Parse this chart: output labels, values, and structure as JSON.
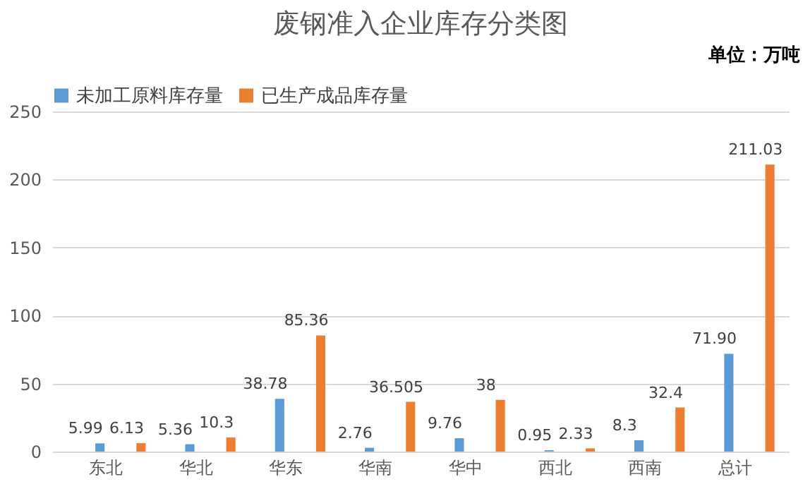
{
  "chart_data": {
    "type": "bar",
    "title": "废钢准入企业库存分类图",
    "annotations": [
      "单位：万吨"
    ],
    "categories": [
      "东北",
      "华北",
      "华东",
      "华南",
      "华中",
      "西北",
      "西南",
      "总计"
    ],
    "series": [
      {
        "name": "未加工原料库存量",
        "color": "#5b9bd5",
        "values": [
          5.99,
          5.36,
          38.78,
          2.76,
          9.76,
          0.95,
          8.3,
          71.9
        ],
        "value_labels": [
          "5.99",
          "5.36",
          "38.78",
          "2.76",
          "9.76",
          "0.95",
          "8.3",
          "71.90"
        ]
      },
      {
        "name": "已生产成品库存量",
        "color": "#ed7d31",
        "values": [
          6.13,
          10.3,
          85.36,
          36.505,
          38,
          2.33,
          32.4,
          211.03
        ],
        "value_labels": [
          "6.13",
          "10.3",
          "85.36",
          "36.505",
          "38",
          "2.33",
          "32.4",
          "211.03"
        ]
      }
    ],
    "ylim": [
      0,
      250
    ],
    "yticks": [
      0,
      50,
      100,
      150,
      200,
      250
    ],
    "grid": "y",
    "legend": "top"
  }
}
